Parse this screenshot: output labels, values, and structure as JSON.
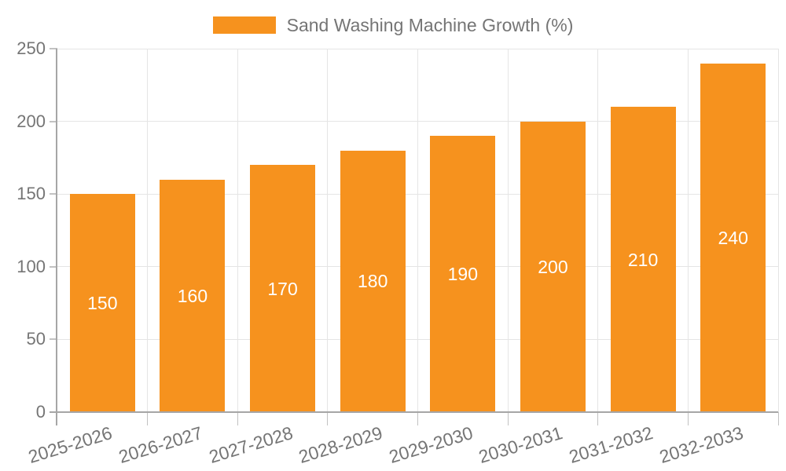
{
  "chart_data": {
    "type": "bar",
    "title": "Sand Washing Machine Growth (%)",
    "series_name": "Sand Washing Machine Growth (%)",
    "categories": [
      "2025-2026",
      "2026-2027",
      "2027-2028",
      "2028-2029",
      "2029-2030",
      "2030-2031",
      "2031-2032",
      "2032-2033"
    ],
    "values": [
      150,
      160,
      170,
      180,
      190,
      200,
      210,
      240
    ],
    "bar_labels": [
      "150",
      "160",
      "170",
      "180",
      "190",
      "200",
      "210",
      "240"
    ],
    "xlabel": "",
    "ylabel": "",
    "ylim": [
      0,
      250
    ],
    "yticks": [
      0,
      50,
      100,
      150,
      200,
      250
    ],
    "grid": true,
    "legend_position": "top-center",
    "colors": {
      "bar": "#F6921E",
      "value_label": "#FFFFFF",
      "axis": "#A6A6A6",
      "tick": "#C2C2C2",
      "gridline": "#E5E5E5",
      "text": "#757575",
      "background": "#FFFFFF"
    }
  }
}
